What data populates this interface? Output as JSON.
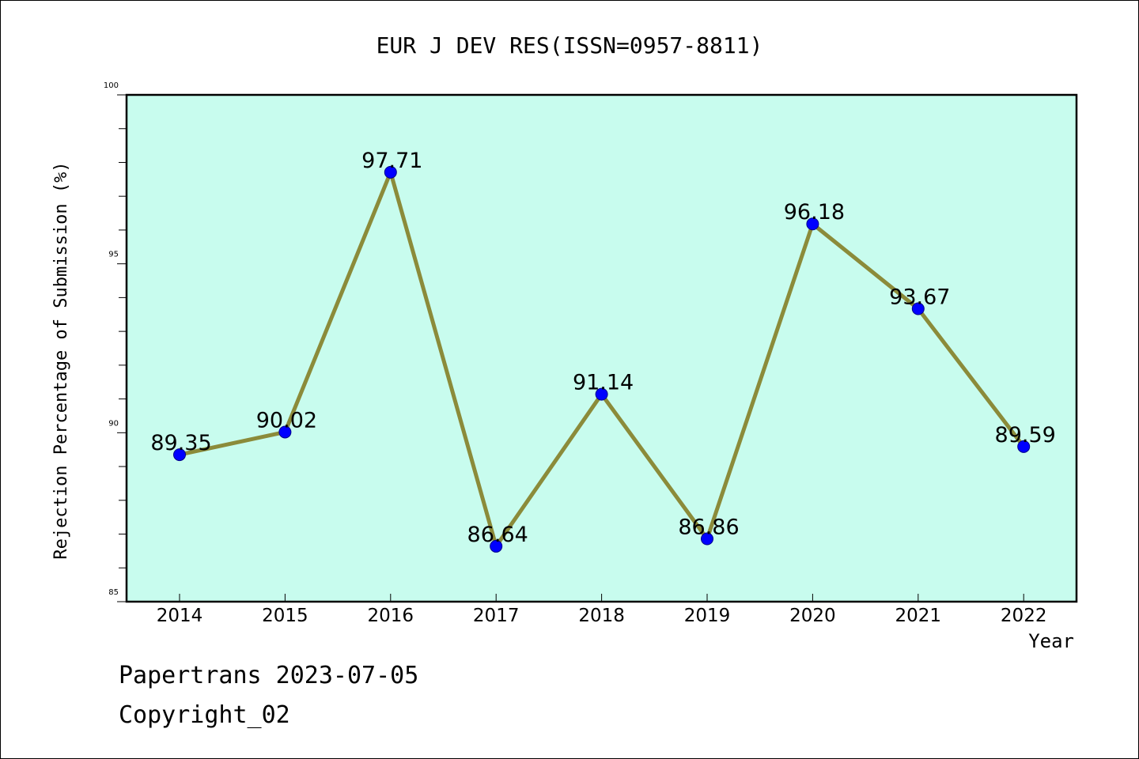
{
  "chart_data": {
    "type": "line",
    "title": "EUR J DEV RES(ISSN=0957-8811)",
    "xlabel": "Year",
    "ylabel": "Rejection Percentage of Submission (%)",
    "categories": [
      "2014",
      "2015",
      "2016",
      "2017",
      "2018",
      "2019",
      "2020",
      "2021",
      "2022"
    ],
    "values": [
      89.35,
      90.02,
      97.71,
      86.64,
      91.14,
      86.86,
      96.18,
      93.67,
      89.59
    ],
    "data_labels": [
      "89.35",
      "90.02",
      "97.71",
      "86.64",
      "91.14",
      "86.86",
      "96.18",
      "93.67",
      "89.59"
    ],
    "ylim": [
      85,
      100
    ],
    "y_ticks": [
      "85",
      "90",
      "95",
      "100"
    ],
    "grid": false,
    "legend": "none",
    "colors": {
      "plot_background": "#c8fcee",
      "line": "#8b8b3a",
      "marker": "#0000ff"
    }
  },
  "footer": {
    "line1": "Papertrans 2023-07-05",
    "line2": "Copyright_02"
  }
}
